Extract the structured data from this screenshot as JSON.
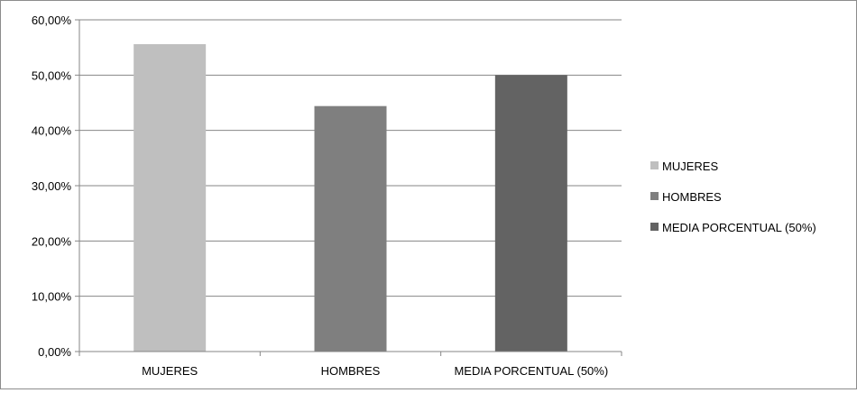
{
  "chart_data": {
    "type": "bar",
    "title": "",
    "xlabel": "",
    "ylabel": "",
    "categories": [
      "MUJERES",
      "HOMBRES",
      "MEDIA PORCENTUAL (50%)"
    ],
    "values": [
      55.6,
      44.4,
      50.0
    ],
    "ylim": [
      0,
      60
    ],
    "yticks": [
      0,
      10,
      20,
      30,
      40,
      50,
      60
    ],
    "ytick_labels": [
      "0,00%",
      "10,00%",
      "20,00%",
      "30,00%",
      "40,00%",
      "50,00%",
      "60,00%"
    ],
    "grid": true,
    "legend": {
      "position": "right",
      "entries": [
        "MUJERES",
        "HOMBRES",
        "MEDIA PORCENTUAL (50%)"
      ]
    },
    "colors": [
      "#bfbfbf",
      "#7f7f7f",
      "#636363"
    ]
  }
}
